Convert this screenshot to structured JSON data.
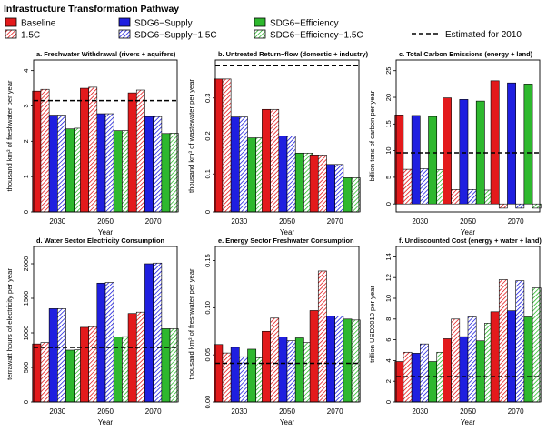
{
  "header": {
    "title": "Infrastructure Transformation Pathway"
  },
  "legend": {
    "items": [
      {
        "label": "Baseline",
        "color": "#e31a1c",
        "hatch": false
      },
      {
        "label": "1.5C",
        "color": "#e31a1c",
        "hatch": true
      },
      {
        "label": "SDG6−Supply",
        "color": "#1f1fe0",
        "hatch": false
      },
      {
        "label": "SDG6−Supply−1.5C",
        "color": "#1f1fe0",
        "hatch": true
      },
      {
        "label": "SDG6−Efficiency",
        "color": "#2eb82e",
        "hatch": false
      },
      {
        "label": "SDG6−Efficiency−1.5C",
        "color": "#2eb82e",
        "hatch": true
      }
    ],
    "reference_label": "Estimated for 2010"
  },
  "chart_data": [
    {
      "type": "bar",
      "title": "a. Freshwater Withdrawal (rivers + aquifers)",
      "xlabel": "Year",
      "ylabel": "thousand km³ of freshwater per year",
      "categories": [
        "2030",
        "2050",
        "2070"
      ],
      "ylim": [
        0,
        4.3
      ],
      "yticks": [
        0,
        1,
        2,
        3,
        4
      ],
      "yticklabels": [
        "0",
        "1",
        "2",
        "3",
        "4"
      ],
      "reference": 3.15,
      "series": [
        {
          "name": "Baseline",
          "values": [
            3.42,
            3.5,
            3.37
          ]
        },
        {
          "name": "1.5C",
          "values": [
            3.47,
            3.53,
            3.45
          ]
        },
        {
          "name": "SDG6−Supply",
          "values": [
            2.74,
            2.78,
            2.7
          ]
        },
        {
          "name": "SDG6−Supply−1.5C",
          "values": [
            2.74,
            2.78,
            2.7
          ]
        },
        {
          "name": "SDG6−Efficiency",
          "values": [
            2.35,
            2.3,
            2.22
          ]
        },
        {
          "name": "SDG6−Efficiency−1.5C",
          "values": [
            2.37,
            2.3,
            2.23
          ]
        }
      ]
    },
    {
      "type": "bar",
      "title": "b. Untreated Return−flow (domestic + industry)",
      "xlabel": "Year",
      "ylabel": "thousand km³ of wastewater per year",
      "categories": [
        "2030",
        "2050",
        "2070"
      ],
      "ylim": [
        0,
        0.4
      ],
      "yticks": [
        0,
        0.1,
        0.2,
        0.3
      ],
      "yticklabels": [
        "0",
        "0.1",
        "0.2",
        "0.3"
      ],
      "reference": 0.385,
      "series": [
        {
          "name": "Baseline",
          "values": [
            0.35,
            0.27,
            0.15
          ]
        },
        {
          "name": "1.5C",
          "values": [
            0.35,
            0.27,
            0.15
          ]
        },
        {
          "name": "SDG6−Supply",
          "values": [
            0.25,
            0.2,
            0.125
          ]
        },
        {
          "name": "SDG6−Supply−1.5C",
          "values": [
            0.25,
            0.2,
            0.125
          ]
        },
        {
          "name": "SDG6−Efficiency",
          "values": [
            0.195,
            0.155,
            0.09
          ]
        },
        {
          "name": "SDG6−Efficiency−1.5C",
          "values": [
            0.195,
            0.155,
            0.09
          ]
        }
      ]
    },
    {
      "type": "bar",
      "title": "c. Total Carbon Emissions (energy + land)",
      "xlabel": "Year",
      "ylabel": "billion tons of carbon per year",
      "categories": [
        "2030",
        "2050",
        "2070"
      ],
      "ylim": [
        -1.5,
        27
      ],
      "yticks": [
        0,
        5,
        10,
        15,
        20,
        25
      ],
      "yticklabels": [
        "0",
        "5",
        "10",
        "15",
        "20",
        "25"
      ],
      "reference": 9.6,
      "series": [
        {
          "name": "Baseline",
          "values": [
            16.7,
            19.9,
            23.1
          ]
        },
        {
          "name": "1.5C",
          "values": [
            6.5,
            2.7,
            -0.8
          ]
        },
        {
          "name": "SDG6−Supply",
          "values": [
            16.6,
            19.6,
            22.7
          ]
        },
        {
          "name": "SDG6−Supply−1.5C",
          "values": [
            6.6,
            2.7,
            -0.8
          ]
        },
        {
          "name": "SDG6−Efficiency",
          "values": [
            16.4,
            19.3,
            22.5
          ]
        },
        {
          "name": "SDG6−Efficiency−1.5C",
          "values": [
            6.4,
            2.6,
            -0.8
          ]
        }
      ]
    },
    {
      "type": "bar",
      "title": "d. Water Sector Electricity Consumption",
      "xlabel": "Year",
      "ylabel": "terrawatt hours of electricity per year",
      "categories": [
        "2030",
        "2050",
        "2070"
      ],
      "ylim": [
        0,
        2250
      ],
      "yticks": [
        0,
        500,
        1000,
        1500,
        2000
      ],
      "yticklabels": [
        "0",
        "500",
        "1000",
        "1500",
        "2000"
      ],
      "reference": 790,
      "series": [
        {
          "name": "Baseline",
          "values": [
            840,
            1080,
            1280
          ]
        },
        {
          "name": "1.5C",
          "values": [
            860,
            1090,
            1300
          ]
        },
        {
          "name": "SDG6−Supply",
          "values": [
            1350,
            1720,
            2000
          ]
        },
        {
          "name": "SDG6−Supply−1.5C",
          "values": [
            1350,
            1730,
            2010
          ]
        },
        {
          "name": "SDG6−Efficiency",
          "values": [
            750,
            940,
            1060
          ]
        },
        {
          "name": "SDG6−Efficiency−1.5C",
          "values": [
            755,
            945,
            1060
          ]
        }
      ]
    },
    {
      "type": "bar",
      "title": "e. Energy Sector Freshwater Consumption",
      "xlabel": "Year",
      "ylabel": "thousand km³ of freshwater per year",
      "categories": [
        "2030",
        "2050",
        "2070"
      ],
      "ylim": [
        0,
        0.165
      ],
      "yticks": [
        0,
        0.05,
        0.1,
        0.15
      ],
      "yticklabels": [
        "0.00",
        "0.05",
        "0.10",
        "0.15"
      ],
      "reference": 0.041,
      "series": [
        {
          "name": "Baseline",
          "values": [
            0.061,
            0.075,
            0.097
          ]
        },
        {
          "name": "1.5C",
          "values": [
            0.052,
            0.089,
            0.139
          ]
        },
        {
          "name": "SDG6−Supply",
          "values": [
            0.058,
            0.069,
            0.091
          ]
        },
        {
          "name": "SDG6−Supply−1.5C",
          "values": [
            0.048,
            0.065,
            0.091
          ]
        },
        {
          "name": "SDG6−Efficiency",
          "values": [
            0.056,
            0.068,
            0.088
          ]
        },
        {
          "name": "SDG6−Efficiency−1.5C",
          "values": [
            0.047,
            0.063,
            0.087
          ]
        }
      ]
    },
    {
      "type": "bar",
      "title": "f. Undiscounted Cost (energy + water + land)",
      "xlabel": "Year",
      "ylabel": "trillion USD2010 per year",
      "categories": [
        "2030",
        "2050",
        "2070"
      ],
      "ylim": [
        0,
        15
      ],
      "yticks": [
        0,
        2,
        4,
        6,
        8,
        10,
        12,
        14
      ],
      "yticklabels": [
        "0",
        "2",
        "4",
        "6",
        "8",
        "10",
        "12",
        "14"
      ],
      "reference": 2.45,
      "series": [
        {
          "name": "Baseline",
          "values": [
            3.9,
            6.1,
            8.7
          ]
        },
        {
          "name": "1.5C",
          "values": [
            4.8,
            8.0,
            11.8
          ]
        },
        {
          "name": "SDG6−Supply",
          "values": [
            4.7,
            6.3,
            8.8
          ]
        },
        {
          "name": "SDG6−Supply−1.5C",
          "values": [
            5.6,
            8.2,
            11.7
          ]
        },
        {
          "name": "SDG6−Efficiency",
          "values": [
            3.9,
            5.9,
            8.2
          ]
        },
        {
          "name": "SDG6−Efficiency−1.5C",
          "values": [
            4.8,
            7.6,
            11.0
          ]
        }
      ]
    }
  ]
}
